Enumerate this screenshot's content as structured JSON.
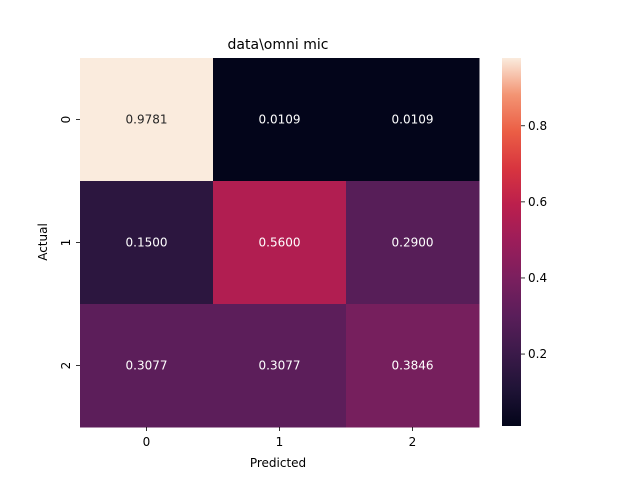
{
  "chart_data": {
    "type": "heatmap",
    "title": "data\\omni mic",
    "xlabel": "Predicted",
    "ylabel": "Actual",
    "x_categories": [
      "0",
      "1",
      "2"
    ],
    "y_categories": [
      "0",
      "1",
      "2"
    ],
    "values": [
      [
        0.9781,
        0.0109,
        0.0109
      ],
      [
        0.15,
        0.56,
        0.29
      ],
      [
        0.3077,
        0.3077,
        0.3846
      ]
    ],
    "value_labels": [
      [
        "0.9781",
        "0.0109",
        "0.0109"
      ],
      [
        "0.1500",
        "0.5600",
        "0.2900"
      ],
      [
        "0.3077",
        "0.3077",
        "0.3846"
      ]
    ],
    "colorbar": {
      "colormap": "rocket",
      "range": [
        0.0109,
        0.9781
      ],
      "ticks": [
        0.2,
        0.4,
        0.6,
        0.8
      ],
      "tick_labels": [
        "0.2",
        "0.4",
        "0.6",
        "0.8"
      ]
    },
    "grid": false,
    "legend": "colorbar-right"
  }
}
